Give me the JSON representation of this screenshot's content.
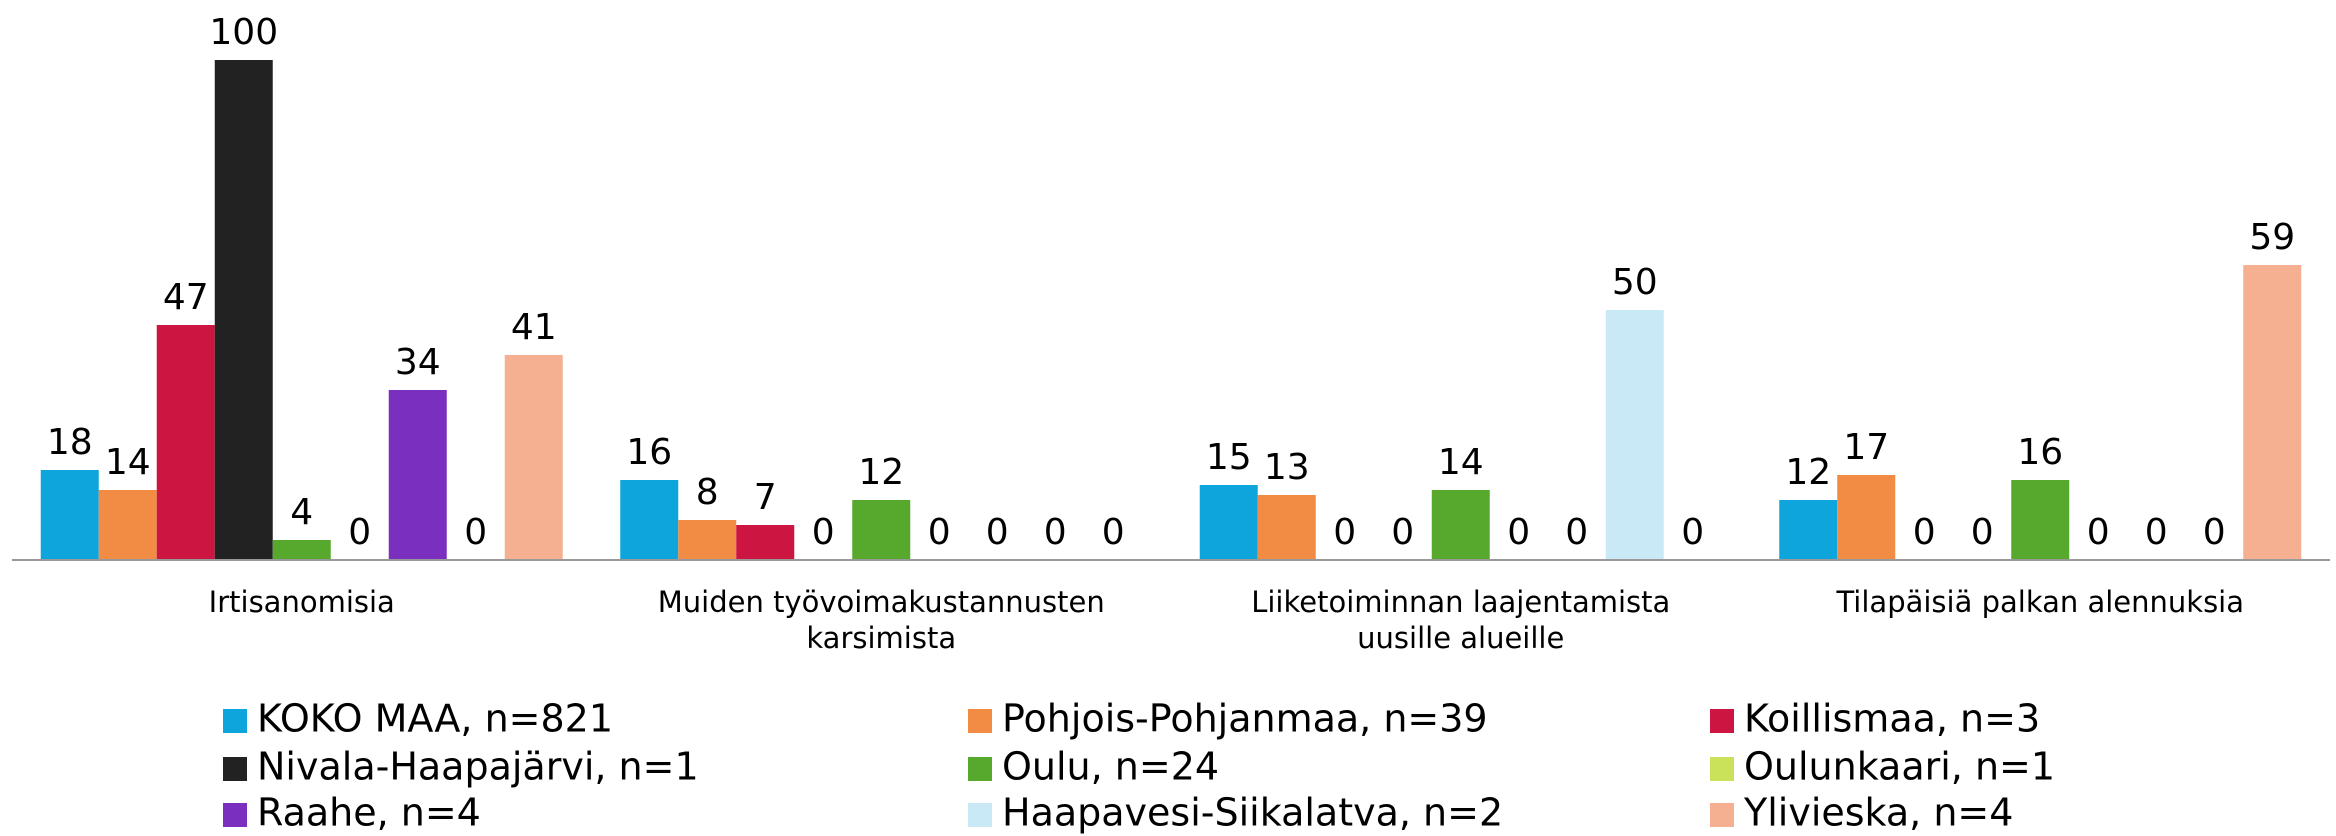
{
  "chart_data": {
    "type": "bar",
    "categories": [
      "Irtisanomisia",
      "Muiden työvoimakustannusten karsimista",
      "Liiketoiminnan laajentamista uusille alueille",
      "Tilapäisiä palkan alennuksia"
    ],
    "series": [
      {
        "name": "KOKO MAA, n=821",
        "color": "#0ea5dc",
        "values": [
          18,
          16,
          15,
          12
        ]
      },
      {
        "name": "Pohjois-Pohjanmaa, n=39",
        "color": "#f28c44",
        "values": [
          14,
          8,
          13,
          17
        ]
      },
      {
        "name": "Koillismaa, n=3",
        "color": "#cc1540",
        "values": [
          47,
          7,
          0,
          0
        ]
      },
      {
        "name": "Nivala-Haapajärvi, n=1",
        "color": "#222222",
        "values": [
          100,
          0,
          0,
          0
        ]
      },
      {
        "name": "Oulu, n=24",
        "color": "#57a92d",
        "values": [
          4,
          12,
          14,
          16
        ]
      },
      {
        "name": "Oulunkaari, n=1",
        "color": "#c9e25a",
        "values": [
          0,
          0,
          0,
          0
        ]
      },
      {
        "name": "Raahe, n=4",
        "color": "#7b2fbf",
        "values": [
          34,
          0,
          0,
          0
        ]
      },
      {
        "name": "Haapavesi-Siikalatva, n=2",
        "color": "#c9e9f6",
        "values": [
          0,
          0,
          50,
          0
        ]
      },
      {
        "name": "Ylivieska, n=4",
        "color": "#f4b090",
        "values": [
          41,
          0,
          0,
          59
        ]
      }
    ],
    "ylim": [
      0,
      100
    ],
    "legend": "bottom"
  }
}
